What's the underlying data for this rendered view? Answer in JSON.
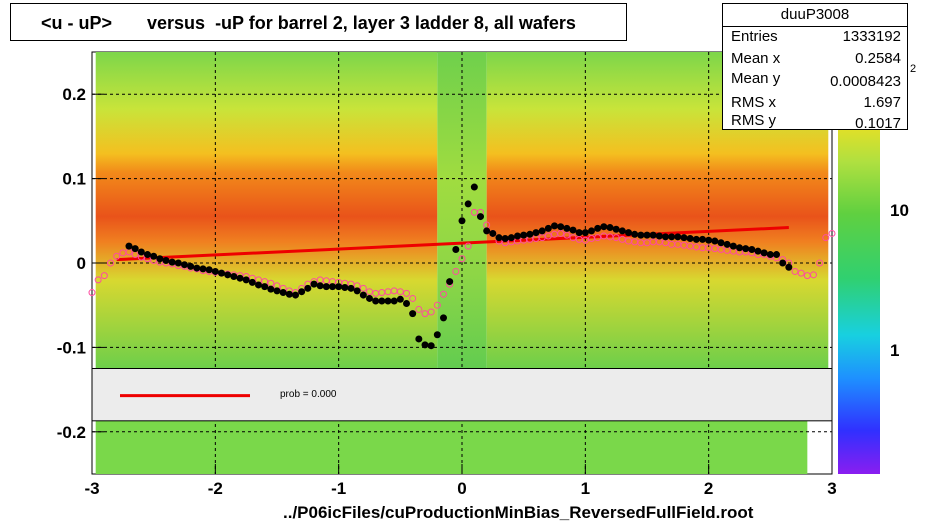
{
  "title": "<u - uP>       versus  -uP for barrel 2, layer 3 ladder 8, all wafers",
  "footer": "../P06icFiles/cuProductionMinBias_ReversedFullField.root",
  "stats": {
    "name": "duuP3008",
    "rows": [
      {
        "key": "Entries",
        "value": "1333192"
      },
      {
        "key": "Mean x",
        "value": "0.2584"
      },
      {
        "key": "Mean y",
        "value": "0.0008423"
      },
      {
        "key": "RMS x",
        "value": "1.697"
      },
      {
        "key": "RMS y",
        "value": "0.1017"
      }
    ]
  },
  "fit_label": "prob = 0.000",
  "palette_labels": [
    "10",
    "1"
  ],
  "palette_partial_label": "2",
  "colors": {
    "fit_line": "#ee0000",
    "profile_black": "#000000",
    "profile_open": "#ff4aa0"
  },
  "chart_data": {
    "type": "heatmap",
    "xlim": [
      -3,
      3
    ],
    "ylim": [
      -0.25,
      0.25
    ],
    "x_ticks": [
      "-3",
      "-2",
      "-1",
      "0",
      "1",
      "2",
      "3"
    ],
    "y_ticks": [
      "0.2",
      "0.1",
      "0",
      "-0.1",
      "-0.2"
    ],
    "grid": true,
    "fit_line": {
      "x": [
        -2.8,
        2.65
      ],
      "y": [
        0.004,
        0.042
      ]
    },
    "profile_filled": {
      "x": [
        -2.7,
        -2.65,
        -2.6,
        -2.55,
        -2.5,
        -2.45,
        -2.4,
        -2.35,
        -2.3,
        -2.25,
        -2.2,
        -2.15,
        -2.1,
        -2.05,
        -2.0,
        -1.95,
        -1.9,
        -1.85,
        -1.8,
        -1.75,
        -1.7,
        -1.65,
        -1.6,
        -1.55,
        -1.5,
        -1.45,
        -1.4,
        -1.35,
        -1.3,
        -1.25,
        -1.2,
        -1.15,
        -1.1,
        -1.05,
        -1.0,
        -0.95,
        -0.9,
        -0.85,
        -0.8,
        -0.75,
        -0.7,
        -0.65,
        -0.6,
        -0.55,
        -0.5,
        -0.45,
        -0.4,
        -0.35,
        -0.3,
        -0.25,
        -0.2,
        -0.15,
        -0.1,
        -0.05,
        0.0,
        0.05,
        0.1,
        0.15,
        0.2,
        0.25,
        0.3,
        0.35,
        0.4,
        0.45,
        0.5,
        0.55,
        0.6,
        0.65,
        0.7,
        0.75,
        0.8,
        0.85,
        0.9,
        0.95,
        1.0,
        1.05,
        1.1,
        1.15,
        1.2,
        1.25,
        1.3,
        1.35,
        1.4,
        1.45,
        1.5,
        1.55,
        1.6,
        1.65,
        1.7,
        1.75,
        1.8,
        1.85,
        1.9,
        1.95,
        2.0,
        2.05,
        2.1,
        2.15,
        2.2,
        2.25,
        2.3,
        2.35,
        2.4,
        2.45,
        2.5,
        2.55,
        2.6,
        2.65
      ],
      "y": [
        0.02,
        0.017,
        0.013,
        0.01,
        0.008,
        0.005,
        0.003,
        0.001,
        0.0,
        -0.002,
        -0.004,
        -0.006,
        -0.007,
        -0.008,
        -0.01,
        -0.012,
        -0.014,
        -0.016,
        -0.018,
        -0.02,
        -0.023,
        -0.026,
        -0.028,
        -0.031,
        -0.033,
        -0.035,
        -0.037,
        -0.038,
        -0.034,
        -0.03,
        -0.025,
        -0.027,
        -0.028,
        -0.028,
        -0.028,
        -0.029,
        -0.03,
        -0.033,
        -0.038,
        -0.042,
        -0.045,
        -0.045,
        -0.045,
        -0.045,
        -0.043,
        -0.048,
        -0.06,
        -0.09,
        -0.097,
        -0.098,
        -0.085,
        -0.065,
        -0.022,
        0.016,
        0.05,
        0.07,
        0.09,
        0.055,
        0.038,
        0.035,
        0.03,
        0.029,
        0.03,
        0.032,
        0.033,
        0.034,
        0.036,
        0.038,
        0.041,
        0.044,
        0.043,
        0.041,
        0.039,
        0.036,
        0.036,
        0.038,
        0.041,
        0.043,
        0.042,
        0.04,
        0.038,
        0.036,
        0.034,
        0.033,
        0.033,
        0.033,
        0.032,
        0.031,
        0.031,
        0.031,
        0.03,
        0.029,
        0.028,
        0.028,
        0.027,
        0.026,
        0.024,
        0.022,
        0.02,
        0.018,
        0.017,
        0.016,
        0.014,
        0.012,
        0.01,
        0.01,
        0.0,
        -0.005
      ]
    },
    "profile_open": {
      "x": [
        -3.0,
        -2.95,
        -2.9,
        -2.85,
        -2.8,
        -2.75,
        -2.7,
        -2.65,
        -2.6,
        -2.55,
        -2.5,
        -2.45,
        -2.4,
        -2.35,
        -2.3,
        -2.25,
        -2.2,
        -2.15,
        -2.1,
        -2.05,
        -2.0,
        -1.95,
        -1.9,
        -1.85,
        -1.8,
        -1.75,
        -1.7,
        -1.65,
        -1.6,
        -1.55,
        -1.5,
        -1.45,
        -1.4,
        -1.35,
        -1.3,
        -1.25,
        -1.2,
        -1.15,
        -1.1,
        -1.05,
        -1.0,
        -0.95,
        -0.9,
        -0.85,
        -0.8,
        -0.75,
        -0.7,
        -0.65,
        -0.6,
        -0.55,
        -0.5,
        -0.45,
        -0.4,
        -0.35,
        -0.3,
        -0.25,
        -0.2,
        -0.15,
        -0.1,
        -0.05,
        0.0,
        0.05,
        0.1,
        0.15,
        0.2,
        0.25,
        0.3,
        0.35,
        0.4,
        0.45,
        0.5,
        0.55,
        0.6,
        0.65,
        0.7,
        0.75,
        0.8,
        0.85,
        0.9,
        0.95,
        1.0,
        1.05,
        1.1,
        1.15,
        1.2,
        1.25,
        1.3,
        1.35,
        1.4,
        1.45,
        1.5,
        1.55,
        1.6,
        1.65,
        1.7,
        1.75,
        1.8,
        1.85,
        1.9,
        1.95,
        2.0,
        2.05,
        2.1,
        2.15,
        2.2,
        2.25,
        2.3,
        2.35,
        2.4,
        2.45,
        2.5,
        2.55,
        2.6,
        2.65,
        2.7,
        2.75,
        2.8,
        2.85,
        2.9,
        2.95,
        3.0
      ],
      "y": [
        -0.035,
        -0.02,
        -0.015,
        0.0,
        0.008,
        0.012,
        0.013,
        0.01,
        0.007,
        0.005,
        0.003,
        0.001,
        0.0,
        -0.001,
        -0.003,
        -0.004,
        -0.006,
        -0.007,
        -0.009,
        -0.01,
        -0.011,
        -0.012,
        -0.013,
        -0.014,
        -0.015,
        -0.016,
        -0.018,
        -0.02,
        -0.022,
        -0.024,
        -0.027,
        -0.03,
        -0.033,
        -0.035,
        -0.03,
        -0.025,
        -0.022,
        -0.02,
        -0.021,
        -0.022,
        -0.023,
        -0.024,
        -0.025,
        -0.027,
        -0.03,
        -0.034,
        -0.036,
        -0.035,
        -0.034,
        -0.033,
        -0.034,
        -0.036,
        -0.042,
        -0.055,
        -0.06,
        -0.058,
        -0.05,
        -0.037,
        -0.025,
        -0.01,
        0.005,
        0.02,
        0.06,
        0.06,
        0.045,
        0.035,
        0.026,
        0.024,
        0.025,
        0.026,
        0.027,
        0.028,
        0.029,
        0.03,
        0.032,
        0.034,
        0.035,
        0.033,
        0.03,
        0.028,
        0.027,
        0.029,
        0.03,
        0.032,
        0.031,
        0.03,
        0.028,
        0.026,
        0.025,
        0.024,
        0.024,
        0.025,
        0.025,
        0.024,
        0.022,
        0.022,
        0.021,
        0.02,
        0.019,
        0.018,
        0.018,
        0.017,
        0.016,
        0.015,
        0.014,
        0.013,
        0.013,
        0.012,
        0.01,
        0.01,
        0.008,
        0.006,
        0.004,
        0.0,
        -0.01,
        -0.012,
        -0.015,
        -0.014,
        0.0,
        0.03,
        0.035
      ]
    }
  }
}
